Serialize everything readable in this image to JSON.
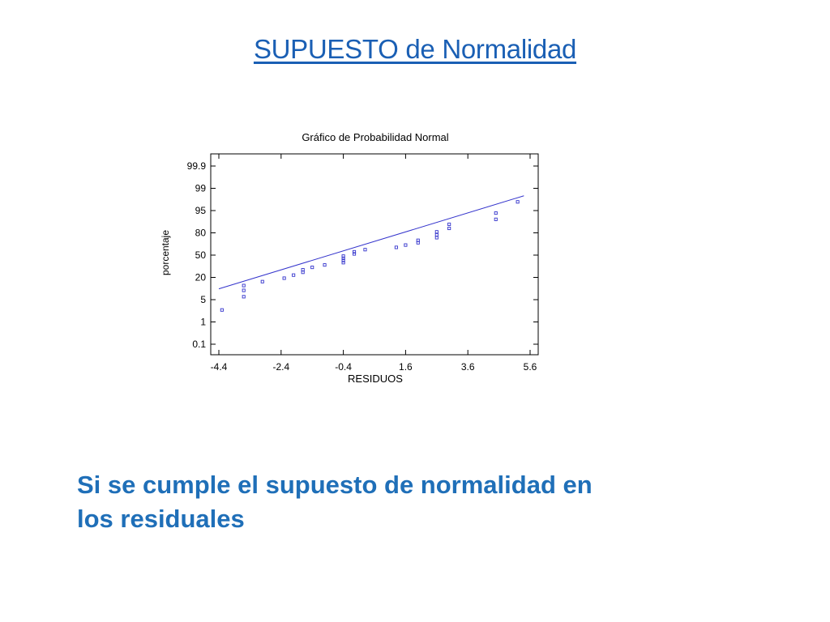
{
  "slide": {
    "title": "SUPUESTO de Normalidad",
    "conclusion_line1": "Si se cumple el supuesto de normalidad en",
    "conclusion_line2": "los residuales"
  },
  "colors": {
    "title": "#1a5fb4",
    "conclusion": "#1f6fb8",
    "points": "#3333cc",
    "fit_line": "#3333cc",
    "axes": "#000000"
  },
  "chart_data": {
    "type": "scatter",
    "title": "Gráfico de Probabilidad Normal",
    "xlabel": "RESIDUOS",
    "ylabel": "porcentaje",
    "xlim": [
      -4.4,
      5.6
    ],
    "x_ticks": [
      "-4.4",
      "-2.4",
      "-0.4",
      "1.6",
      "3.6",
      "5.6"
    ],
    "y_scale": "normal-probability",
    "y_ticks": [
      "0.1",
      "1",
      "5",
      "20",
      "50",
      "80",
      "95",
      "99",
      "99.9"
    ],
    "grid": false,
    "points": [
      {
        "x": -4.3,
        "y": 2.5
      },
      {
        "x": -3.6,
        "y": 6.2
      },
      {
        "x": -3.6,
        "y": 9.5
      },
      {
        "x": -3.6,
        "y": 12.8
      },
      {
        "x": -3.0,
        "y": 16.0
      },
      {
        "x": -2.3,
        "y": 19.2
      },
      {
        "x": -2.0,
        "y": 22.5
      },
      {
        "x": -1.7,
        "y": 25.8
      },
      {
        "x": -1.7,
        "y": 29.0
      },
      {
        "x": -1.4,
        "y": 32.2
      },
      {
        "x": -1.0,
        "y": 35.5
      },
      {
        "x": -0.4,
        "y": 38.8
      },
      {
        "x": -0.4,
        "y": 42.0
      },
      {
        "x": -0.4,
        "y": 45.2
      },
      {
        "x": -0.4,
        "y": 48.5
      },
      {
        "x": -0.05,
        "y": 51.8
      },
      {
        "x": -0.05,
        "y": 55.0
      },
      {
        "x": 0.3,
        "y": 58.2
      },
      {
        "x": 1.3,
        "y": 61.5
      },
      {
        "x": 1.6,
        "y": 64.8
      },
      {
        "x": 2.0,
        "y": 68.0
      },
      {
        "x": 2.0,
        "y": 71.2
      },
      {
        "x": 2.6,
        "y": 74.5
      },
      {
        "x": 2.6,
        "y": 77.8
      },
      {
        "x": 2.6,
        "y": 81.0
      },
      {
        "x": 3.0,
        "y": 84.2
      },
      {
        "x": 3.0,
        "y": 87.5
      },
      {
        "x": 4.5,
        "y": 90.8
      },
      {
        "x": 4.5,
        "y": 94.0
      },
      {
        "x": 5.2,
        "y": 97.2
      }
    ],
    "fit_line": {
      "x": [
        -4.4,
        5.4
      ],
      "y": [
        10.5,
        98.2
      ]
    }
  }
}
